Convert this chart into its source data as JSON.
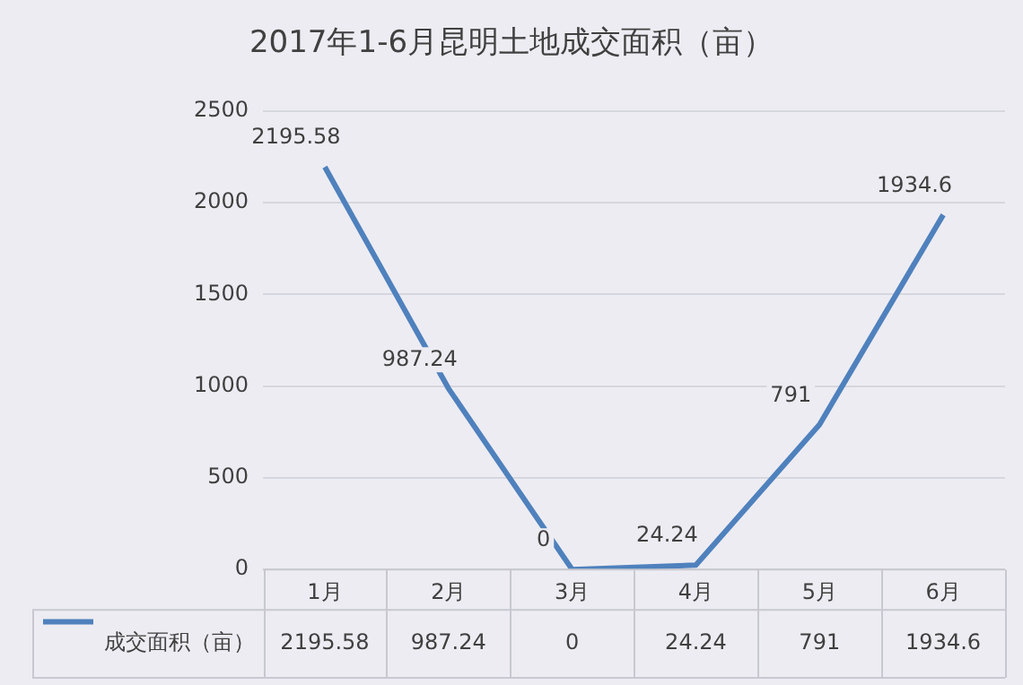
{
  "chart_data": {
    "type": "line",
    "title": "2017年1-6月昆明土地成交面积（亩）",
    "categories": [
      "1月",
      "2月",
      "3月",
      "4月",
      "5月",
      "6月"
    ],
    "series": [
      {
        "name": "成交面积（亩）",
        "color": "#4f81bd",
        "values": [
          2195.58,
          987.24,
          0,
          24.24,
          791,
          1934.6
        ]
      }
    ],
    "annotations": [
      {
        "text": "2195.58",
        "x": "1月",
        "y": 2195.58
      },
      {
        "text": "987.24",
        "x": "2月",
        "y": 987.24
      },
      {
        "text": "0",
        "x": "3月",
        "y": 0
      },
      {
        "text": "24.24",
        "x": "4月",
        "y": 24.24
      },
      {
        "text": "791",
        "x": "5月",
        "y": 791
      },
      {
        "text": "1934.6",
        "x": "6月",
        "y": 1934.6
      }
    ],
    "ylim": [
      0,
      2500
    ],
    "yticks": [
      0,
      500,
      1000,
      1500,
      2000,
      2500
    ],
    "grid": "y",
    "legend": "bottom",
    "data_labels": true,
    "marker": "none"
  }
}
